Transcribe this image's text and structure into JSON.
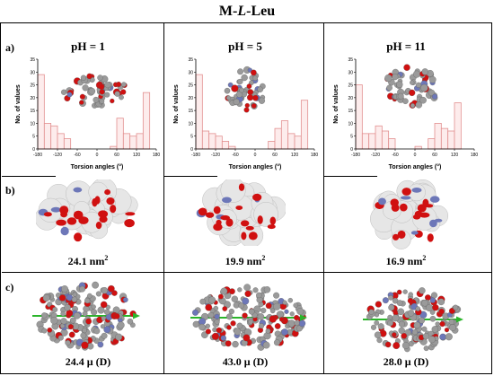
{
  "figure": {
    "title": "M-L-Leu",
    "title_prefix": "M-",
    "title_italic": "L",
    "title_suffix": "-Leu",
    "row_labels": [
      "a)",
      "b)",
      "c)"
    ],
    "columns": [
      {
        "ph": "pH = 1",
        "area_value": "24.1 nm",
        "area_exp": "2",
        "dipole": "24.4 μ (D)"
      },
      {
        "ph": "pH = 5",
        "area_value": "19.9 nm",
        "area_exp": "2",
        "dipole": "43.0 μ (D)"
      },
      {
        "ph": "pH = 11",
        "area_value": "16.9 nm",
        "area_exp": "2",
        "dipole": "28.0 μ (D)"
      }
    ]
  },
  "chart_data": [
    {
      "type": "bar",
      "xlabel": "Torsion angles (°)",
      "ylabel": "No. of values",
      "xlim": [
        -180,
        180
      ],
      "ylim": [
        0,
        35
      ],
      "xticks": [
        -180,
        -120,
        -60,
        0,
        60,
        120,
        180
      ],
      "yticks": [
        0,
        5,
        10,
        15,
        20,
        25,
        30,
        35
      ],
      "bin_width": 20,
      "bin_starts": [
        -180,
        -160,
        -140,
        -120,
        -100,
        -80,
        -60,
        -40,
        -20,
        0,
        20,
        40,
        60,
        80,
        100,
        120,
        140,
        160
      ],
      "values": [
        29,
        10,
        9,
        6,
        4,
        0,
        0,
        0,
        0,
        0,
        0,
        1,
        12,
        6,
        5,
        6,
        22,
        0
      ]
    },
    {
      "type": "bar",
      "xlabel": "Torsion angles (°)",
      "ylabel": "No. of values",
      "xlim": [
        -180,
        180
      ],
      "ylim": [
        0,
        35
      ],
      "xticks": [
        -180,
        -120,
        -60,
        0,
        60,
        120,
        180
      ],
      "yticks": [
        0,
        5,
        10,
        15,
        20,
        25,
        30,
        35
      ],
      "bin_width": 20,
      "bin_starts": [
        -180,
        -160,
        -140,
        -120,
        -100,
        -80,
        -60,
        -40,
        -20,
        0,
        20,
        40,
        60,
        80,
        100,
        120,
        140,
        160
      ],
      "values": [
        29,
        7,
        6,
        5,
        3,
        1,
        0,
        0,
        0,
        0,
        0,
        3,
        8,
        11,
        6,
        5,
        19,
        0
      ]
    },
    {
      "type": "bar",
      "xlabel": "Torsion angles (°)",
      "ylabel": "No. of values",
      "xlim": [
        -180,
        180
      ],
      "ylim": [
        0,
        35
      ],
      "xticks": [
        -180,
        -120,
        -60,
        0,
        60,
        120,
        180
      ],
      "yticks": [
        0,
        5,
        10,
        15,
        20,
        25,
        30,
        35
      ],
      "bin_width": 20,
      "bin_starts": [
        -180,
        -160,
        -140,
        -120,
        -100,
        -80,
        -60,
        -40,
        -20,
        0,
        20,
        40,
        60,
        80,
        100,
        120,
        140,
        160
      ],
      "values": [
        25,
        6,
        6,
        9,
        7,
        4,
        0,
        0,
        0,
        1,
        0,
        4,
        10,
        8,
        7,
        18,
        0,
        0
      ]
    }
  ],
  "colors": {
    "bar_fill": "#fdecec",
    "bar_stroke": "#e29090",
    "oxygen": "#d01010",
    "carbon": "#9a9a9a",
    "nitrogen": "#6d77b8",
    "surface": "#e6e6e6",
    "dipole_arrow": "#2bb52b"
  }
}
